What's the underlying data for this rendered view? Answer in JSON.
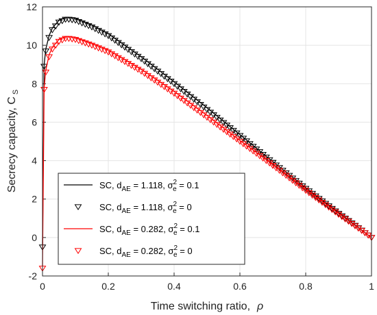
{
  "chart_data": {
    "type": "line",
    "xlabel": "Time switching ratio,",
    "xlabel_symbol": "ρ",
    "ylabel": "Secrecy capacity, C",
    "ylabel_sub": "S",
    "xlim": [
      0,
      1
    ],
    "ylim": [
      -2,
      12
    ],
    "xticks": [
      "0",
      "0.2",
      "0.4",
      "0.6",
      "0.8",
      "1"
    ],
    "xtick_values": [
      0,
      0.2,
      0.4,
      0.6,
      0.8,
      1
    ],
    "yticks": [
      "-2",
      "0",
      "2",
      "4",
      "6",
      "8",
      "10",
      "12"
    ],
    "ytick_values": [
      -2,
      0,
      2,
      4,
      6,
      8,
      10,
      12
    ],
    "grid": true,
    "legend_position": "bottom-left",
    "series": [
      {
        "name": "SC, d_AE = 1.118, σ_e^2 = 0.1",
        "legend": {
          "prefix": "SC, d",
          "sub1": "AE",
          "mid": " = 1.118, σ",
          "sup": "2",
          "sub2": "e",
          "suffix": " = 0.1"
        },
        "style": "line",
        "color": "#000000",
        "x": [
          0,
          0.005,
          0.01,
          0.02,
          0.03,
          0.05,
          0.07,
          0.08,
          0.1,
          0.15,
          0.2,
          0.3,
          0.4,
          0.5,
          0.6,
          0.7,
          0.8,
          0.9,
          1.0
        ],
        "y": [
          -0.4,
          9.0,
          9.8,
          10.5,
          10.9,
          11.3,
          11.45,
          11.45,
          11.4,
          11.05,
          10.6,
          9.4,
          8.1,
          6.75,
          5.35,
          3.95,
          2.6,
          1.3,
          0.0
        ]
      },
      {
        "name": "SC, d_AE = 1.118, σ_e^2 = 0",
        "legend": {
          "prefix": "SC, d",
          "sub1": "AE",
          "mid": " = 1.118, σ",
          "sup": "2",
          "sub2": "e",
          "suffix": " = 0"
        },
        "style": "marker",
        "color": "#000000",
        "x": [
          0,
          0.005,
          0.01,
          0.02,
          0.03,
          0.05,
          0.07,
          0.08,
          0.1,
          0.15,
          0.2,
          0.3,
          0.4,
          0.5,
          0.6,
          0.7,
          0.8,
          0.9,
          1.0
        ],
        "y": [
          -0.5,
          8.9,
          9.7,
          10.4,
          10.8,
          11.2,
          11.35,
          11.35,
          11.3,
          10.95,
          10.5,
          9.3,
          8.0,
          6.65,
          5.3,
          3.9,
          2.55,
          1.25,
          0.0
        ]
      },
      {
        "name": "SC, d_AE = 0.282, σ_e^2 = 0.1",
        "legend": {
          "prefix": "SC, d",
          "sub1": "AE",
          "mid": " = 0.282, σ",
          "sup": "2",
          "sub2": "e",
          "suffix": " = 0.1"
        },
        "style": "line",
        "color": "#ff0000",
        "x": [
          0,
          0.005,
          0.01,
          0.02,
          0.03,
          0.05,
          0.07,
          0.08,
          0.1,
          0.15,
          0.2,
          0.3,
          0.4,
          0.5,
          0.6,
          0.7,
          0.8,
          0.9,
          1.0
        ],
        "y": [
          -1.5,
          7.8,
          8.7,
          9.5,
          9.9,
          10.3,
          10.45,
          10.45,
          10.4,
          10.1,
          9.75,
          8.75,
          7.6,
          6.35,
          5.05,
          3.8,
          2.5,
          1.25,
          0.0
        ]
      },
      {
        "name": "SC, d_AE = 0.282, σ_e^2 = 0",
        "legend": {
          "prefix": "SC, d",
          "sub1": "AE",
          "mid": " = 0.282, σ",
          "sup": "2",
          "sub2": "e",
          "suffix": " = 0"
        },
        "style": "marker",
        "color": "#ff0000",
        "x": [
          0,
          0.005,
          0.01,
          0.02,
          0.03,
          0.05,
          0.07,
          0.08,
          0.1,
          0.15,
          0.2,
          0.3,
          0.4,
          0.5,
          0.6,
          0.7,
          0.8,
          0.9,
          1.0
        ],
        "y": [
          -1.6,
          7.7,
          8.6,
          9.4,
          9.8,
          10.2,
          10.35,
          10.35,
          10.3,
          10.0,
          9.65,
          8.65,
          7.5,
          6.25,
          5.0,
          3.75,
          2.45,
          1.2,
          0.0
        ]
      }
    ]
  }
}
